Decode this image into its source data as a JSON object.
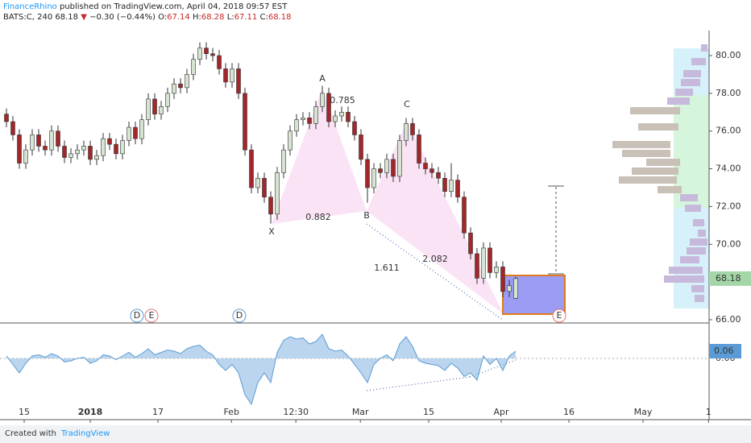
{
  "header": {
    "author": "FinanceRhino",
    "published": "published on TradingView.com, April 04, 2018 09:57 EST",
    "symbol": "BATS:C, 240",
    "last": "68.18",
    "change_arrow": "▼",
    "change": "−0.30 (−0.44%)",
    "ohlc_labels": [
      "O:",
      "H:",
      "L:",
      "C:"
    ],
    "ohlc_values": [
      "67.14",
      "68.28",
      "67.11",
      "68.18"
    ]
  },
  "chart_data": {
    "type": "candlestick",
    "up_color": "#d7e4d2",
    "down_color": "#a3272a",
    "x": [
      1,
      2,
      3,
      4,
      5,
      6,
      7,
      8,
      9,
      10,
      11,
      12,
      13,
      14,
      15,
      16,
      17,
      18,
      19,
      20,
      21,
      22,
      23,
      24,
      25,
      26,
      27,
      28,
      29,
      30,
      31,
      32,
      33,
      34,
      35,
      36,
      37,
      38,
      39,
      40,
      41,
      42,
      43,
      44,
      45,
      46,
      47,
      48,
      49,
      50,
      51,
      52,
      53,
      54,
      55,
      56,
      57,
      58,
      59,
      60,
      61,
      62,
      63,
      64,
      65,
      66,
      67,
      68,
      69,
      70,
      71,
      72,
      73,
      74,
      75,
      76,
      77,
      78,
      79,
      80
    ],
    "open": [
      76.9,
      76.5,
      75.8,
      74.3,
      75.0,
      75.8,
      75.2,
      75.0,
      76.0,
      75.2,
      74.6,
      74.8,
      75.0,
      75.2,
      74.5,
      74.7,
      75.6,
      75.3,
      74.8,
      75.5,
      76.2,
      75.6,
      76.6,
      77.7,
      76.9,
      77.3,
      78.0,
      78.5,
      78.3,
      79.0,
      79.8,
      80.4,
      80.1,
      80.0,
      79.3,
      78.6,
      79.3,
      78.0,
      75.0,
      73.0,
      73.5,
      72.5,
      71.6,
      73.8,
      75.0,
      76.0,
      76.6,
      76.7,
      76.4,
      77.3,
      78.0,
      76.5,
      76.8,
      77.0,
      76.5,
      75.8,
      74.5,
      73.0,
      74.0,
      73.8,
      74.5,
      73.6,
      75.5,
      76.4,
      75.8,
      74.3,
      74.0,
      73.8,
      73.5,
      72.8,
      73.4,
      72.5,
      70.6,
      69.5,
      68.2,
      69.8,
      68.5,
      68.8,
      67.5,
      67.14
    ],
    "high": [
      77.2,
      76.8,
      76.1,
      75.3,
      76.1,
      76.1,
      75.5,
      76.3,
      76.3,
      75.5,
      75.1,
      75.3,
      75.5,
      75.5,
      75.0,
      75.9,
      75.9,
      75.6,
      75.8,
      76.5,
      76.5,
      76.9,
      78.0,
      78.0,
      77.6,
      78.3,
      78.8,
      78.8,
      79.3,
      80.1,
      80.7,
      80.7,
      80.4,
      80.3,
      79.6,
      79.6,
      79.6,
      78.3,
      75.3,
      73.8,
      73.8,
      72.8,
      74.1,
      75.3,
      76.3,
      76.9,
      77.0,
      77.0,
      77.6,
      78.4,
      78.3,
      77.1,
      77.3,
      77.3,
      76.8,
      76.1,
      74.8,
      74.3,
      74.3,
      74.8,
      74.8,
      75.8,
      76.7,
      76.7,
      76.1,
      74.6,
      74.3,
      74.1,
      73.8,
      74.3,
      73.7,
      72.8,
      70.9,
      69.8,
      70.1,
      70.1,
      69.1,
      69.1,
      68.1,
      68.28
    ],
    "low": [
      76.2,
      75.5,
      74.0,
      74.0,
      74.7,
      74.9,
      74.7,
      74.7,
      74.9,
      74.3,
      74.3,
      74.5,
      74.7,
      74.2,
      74.2,
      74.4,
      75.0,
      74.5,
      74.5,
      75.2,
      75.3,
      75.3,
      76.3,
      76.6,
      76.6,
      77.0,
      77.7,
      78.0,
      78.0,
      78.7,
      79.5,
      79.8,
      79.7,
      79.0,
      78.3,
      78.3,
      77.7,
      74.7,
      72.7,
      72.7,
      72.2,
      71.1,
      71.3,
      73.5,
      74.7,
      75.7,
      76.3,
      76.1,
      76.1,
      77.0,
      76.2,
      76.2,
      76.5,
      76.2,
      75.5,
      74.2,
      72.2,
      72.7,
      73.5,
      73.5,
      73.3,
      73.3,
      75.2,
      75.5,
      74.0,
      73.7,
      73.5,
      73.2,
      72.5,
      72.5,
      72.2,
      70.3,
      69.2,
      67.9,
      67.9,
      68.2,
      68.2,
      67.2,
      67.2,
      67.11
    ],
    "close": [
      76.5,
      75.8,
      74.3,
      75.0,
      75.8,
      75.2,
      75.0,
      76.0,
      75.2,
      74.6,
      74.8,
      75.0,
      75.2,
      74.5,
      74.7,
      75.6,
      75.3,
      74.8,
      75.5,
      76.2,
      75.6,
      76.6,
      77.7,
      76.9,
      77.3,
      78.0,
      78.5,
      78.3,
      79.0,
      79.8,
      80.4,
      80.1,
      80.0,
      79.3,
      78.6,
      79.3,
      78.0,
      75.0,
      73.0,
      73.5,
      72.5,
      71.6,
      73.8,
      75.0,
      76.0,
      76.6,
      76.7,
      76.4,
      77.3,
      78.0,
      76.5,
      76.8,
      77.0,
      76.5,
      75.8,
      74.5,
      73.0,
      74.0,
      73.8,
      74.5,
      73.6,
      75.5,
      76.4,
      75.8,
      74.3,
      74.0,
      73.8,
      73.5,
      72.8,
      73.4,
      72.5,
      70.6,
      69.5,
      68.2,
      69.8,
      68.5,
      68.8,
      67.5,
      67.8,
      68.18
    ],
    "xlim": [
      0,
      110
    ],
    "xticks": [
      {
        "value": 3.75,
        "label": "15"
      },
      {
        "value": 14,
        "label": "2018"
      },
      {
        "value": 24.5,
        "label": "17"
      },
      {
        "value": 35.9,
        "label": "Feb"
      },
      {
        "value": 45.9,
        "label": "12:30"
      },
      {
        "value": 55.9,
        "label": "Mar"
      },
      {
        "value": 66.5,
        "label": "15"
      },
      {
        "value": 77.75,
        "label": "Apr"
      },
      {
        "value": 88.25,
        "label": "16"
      },
      {
        "value": 99.75,
        "label": "May"
      },
      {
        "value": 109.9,
        "label": "1"
      }
    ],
    "ylim": [
      65.87,
      81.24
    ],
    "yticks": [
      {
        "value": 66,
        "label": "66.00"
      },
      {
        "value": 68,
        "label": "68.00"
      },
      {
        "value": 70,
        "label": "70.00"
      },
      {
        "value": 72,
        "label": "72.00"
      },
      {
        "value": 74,
        "label": "74.00"
      },
      {
        "value": 76,
        "label": "76.00"
      },
      {
        "value": 78,
        "label": "78.00"
      },
      {
        "value": 80,
        "label": "80.00"
      }
    ],
    "oscillator": {
      "color": "#9cc3e6",
      "values": [
        0.02,
        -0.05,
        -0.12,
        -0.04,
        0.02,
        0.03,
        0.01,
        0.04,
        0.02,
        -0.03,
        -0.02,
        0.0,
        0.01,
        -0.04,
        -0.02,
        0.03,
        0.02,
        -0.01,
        0.02,
        0.05,
        0.01,
        0.04,
        0.08,
        0.03,
        0.05,
        0.07,
        0.06,
        0.04,
        0.08,
        0.1,
        0.11,
        0.06,
        0.03,
        -0.05,
        -0.1,
        -0.05,
        -0.12,
        -0.3,
        -0.38,
        -0.2,
        -0.12,
        -0.2,
        0.05,
        0.15,
        0.18,
        0.16,
        0.17,
        0.12,
        0.14,
        0.2,
        0.08,
        0.06,
        0.07,
        0.02,
        -0.05,
        -0.12,
        -0.2,
        -0.05,
        0.0,
        0.03,
        -0.02,
        0.12,
        0.18,
        0.1,
        -0.02,
        -0.04,
        -0.05,
        -0.06,
        -0.1,
        -0.04,
        -0.08,
        -0.15,
        -0.12,
        -0.18,
        0.02,
        -0.05,
        0.0,
        -0.1,
        0.02,
        0.06
      ],
      "ylim": [
        -0.5,
        0.28
      ],
      "yticks": [
        {
          "value": 0,
          "label": "0.00"
        }
      ]
    },
    "pattern_points": [
      "X",
      "A",
      "B",
      "C"
    ],
    "ratios": [
      "0.785",
      "0.882",
      "1.611",
      "2.082"
    ],
    "markers": [
      "D",
      "E",
      "D",
      "E"
    ]
  },
  "footer": {
    "created": "Created with",
    "brand": "TradingView"
  }
}
